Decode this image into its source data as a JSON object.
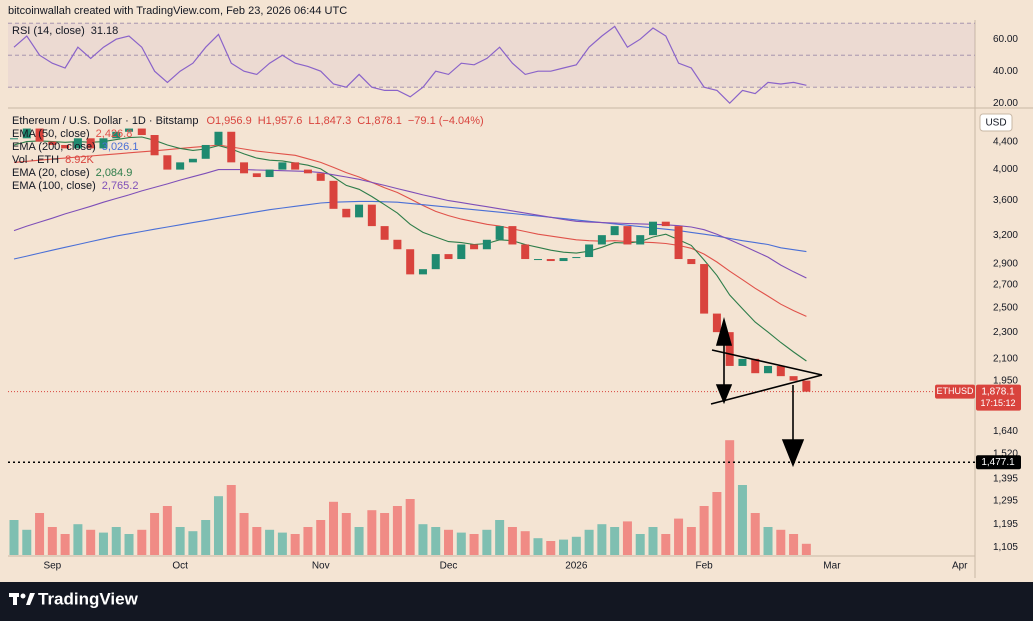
{
  "header": {
    "text": "bitcoinwallah created with TradingView.com, Feb 23, 2026 06:44 UTC"
  },
  "footer": {
    "brand": "TradingView"
  },
  "chart_data": [
    {
      "type": "line",
      "title": "RSI (14, close)",
      "color": "#8a63c9",
      "ylim": [
        17,
        72
      ],
      "yticks": [
        {
          "value": 20,
          "label": "20.00"
        },
        {
          "value": 40,
          "label": "40.00"
        },
        {
          "value": 60,
          "label": "60.00"
        }
      ],
      "bands": [
        30,
        50,
        70
      ],
      "values": [
        55,
        62,
        50,
        45,
        42,
        55,
        48,
        55,
        60,
        62,
        55,
        40,
        33,
        40,
        45,
        55,
        63,
        45,
        40,
        38,
        45,
        50,
        45,
        43,
        40,
        32,
        30,
        38,
        30,
        28,
        28,
        24,
        30,
        40,
        38,
        45,
        44,
        48,
        55,
        45,
        38,
        40,
        40,
        42,
        44,
        55,
        62,
        68,
        55,
        60,
        67,
        62,
        45,
        42,
        30,
        28,
        20,
        28,
        26,
        33,
        32,
        33,
        31.18,
        null,
        null,
        null,
        null,
        null,
        null,
        null,
        null,
        null,
        null,
        null,
        null,
        null,
        null,
        null
      ]
    },
    {
      "type": "candlestick",
      "title": "Ethereum / U.S. Dollar · 1D · Bitstamp",
      "ohlc_labels": [
        "O1,956.9",
        "H1,957.6",
        "L1,847.3",
        "C1,878.1",
        "−79.1 (−4.04%)"
      ],
      "log": true,
      "ylim": [
        1077,
        4900
      ],
      "yticks": [
        {
          "value": 4400,
          "label": "4,400"
        },
        {
          "value": 4000,
          "label": "4,000"
        },
        {
          "value": 3600,
          "label": "3,600"
        },
        {
          "value": 3200,
          "label": "3,200"
        },
        {
          "value": 2900,
          "label": "2,900"
        },
        {
          "value": 2700,
          "label": "2,700"
        },
        {
          "value": 2500,
          "label": "2,500"
        },
        {
          "value": 2300,
          "label": "2,300"
        },
        {
          "value": 2100,
          "label": "2,100"
        },
        {
          "value": 1950,
          "label": "1,950"
        },
        {
          "value": 1640,
          "label": "1,640"
        },
        {
          "value": 1520,
          "label": "1,520"
        },
        {
          "value": 1395,
          "label": "1,395"
        },
        {
          "value": 1295,
          "label": "1,295"
        },
        {
          "value": 1195,
          "label": "1,195"
        },
        {
          "value": 1105,
          "label": "1,105"
        }
      ],
      "currency": "USD",
      "up_color": "#1f8a70",
      "down_color": "#d9433d",
      "volume_up_color": "#7fbfb1",
      "volume_down_color": "#f08b85",
      "categories": [
        null,
        null,
        null,
        "Sep",
        null,
        null,
        null,
        null,
        null,
        null,
        null,
        null,
        null,
        "Oct",
        null,
        null,
        null,
        null,
        null,
        null,
        null,
        null,
        null,
        null,
        "Nov",
        null,
        null,
        null,
        null,
        null,
        null,
        null,
        null,
        null,
        "Dec",
        null,
        null,
        null,
        null,
        null,
        null,
        null,
        null,
        null,
        "2026",
        null,
        null,
        null,
        null,
        null,
        null,
        null,
        null,
        null,
        "Feb",
        null,
        null,
        null,
        null,
        null,
        null,
        null,
        null,
        null,
        "Mar",
        null,
        null,
        null,
        null,
        null,
        null,
        null,
        null,
        null,
        "Apr",
        null,
        null,
        null
      ],
      "close": [
        4450,
        4600,
        4400,
        4350,
        4300,
        4450,
        4300,
        4450,
        4550,
        4600,
        4500,
        4200,
        4000,
        4100,
        4150,
        4350,
        4550,
        4100,
        3950,
        3900,
        4000,
        4100,
        4000,
        3950,
        3850,
        3500,
        3400,
        3550,
        3300,
        3150,
        3050,
        2800,
        2850,
        3000,
        2950,
        3100,
        3050,
        3150,
        3300,
        3100,
        2950,
        2950,
        2930,
        2960,
        2970,
        3100,
        3200,
        3300,
        3100,
        3200,
        3350,
        3300,
        2950,
        2900,
        2450,
        2300,
        2050,
        2100,
        2000,
        2050,
        1980,
        1950,
        1878.1,
        null,
        null,
        null,
        null,
        null,
        null,
        null,
        null,
        null,
        null,
        null,
        null,
        null,
        null,
        null
      ],
      "volume_name": "Vol · ETH",
      "volume_label": "8.92K",
      "volume": [
        250,
        180,
        300,
        200,
        150,
        220,
        180,
        160,
        200,
        150,
        180,
        300,
        350,
        200,
        170,
        250,
        420,
        500,
        300,
        200,
        180,
        160,
        150,
        200,
        250,
        380,
        300,
        200,
        320,
        300,
        350,
        400,
        220,
        200,
        180,
        160,
        150,
        180,
        250,
        200,
        170,
        120,
        100,
        110,
        130,
        180,
        220,
        200,
        240,
        150,
        200,
        150,
        260,
        200,
        350,
        450,
        820,
        500,
        300,
        200,
        180,
        150,
        80,
        null,
        null,
        null,
        null,
        null,
        null,
        null,
        null,
        null,
        null,
        null,
        null,
        null,
        null,
        null
      ],
      "series": [
        {
          "name": "EMA (50, close)",
          "color": "#e0524a",
          "legend_value": "2,426.8",
          "values": [
            4100,
            4115,
            4130,
            4145,
            4160,
            4175,
            4190,
            4205,
            4220,
            4235,
            4250,
            4265,
            4280,
            4300,
            4315,
            4330,
            4350,
            4320,
            4290,
            4260,
            4240,
            4220,
            4200,
            4150,
            4100,
            4030,
            3960,
            3900,
            3830,
            3760,
            3700,
            3620,
            3540,
            3470,
            3420,
            3380,
            3350,
            3320,
            3300,
            3270,
            3240,
            3210,
            3190,
            3170,
            3150,
            3140,
            3135,
            3140,
            3130,
            3125,
            3120,
            3110,
            3090,
            3060,
            3000,
            2920,
            2830,
            2750,
            2670,
            2600,
            2530,
            2475,
            2426.8,
            null,
            null,
            null,
            null,
            null,
            null,
            null,
            null,
            null,
            null,
            null,
            null,
            null,
            null,
            null
          ]
        },
        {
          "name": "EMA (200, close)",
          "color": "#4a6fd6",
          "legend_value": "3,026.1",
          "values": [
            2950,
            2980,
            3010,
            3040,
            3070,
            3100,
            3130,
            3160,
            3190,
            3215,
            3240,
            3265,
            3290,
            3315,
            3340,
            3365,
            3390,
            3415,
            3440,
            3465,
            3490,
            3510,
            3530,
            3550,
            3570,
            3580,
            3585,
            3590,
            3590,
            3585,
            3580,
            3565,
            3550,
            3535,
            3520,
            3505,
            3490,
            3475,
            3460,
            3445,
            3430,
            3415,
            3400,
            3385,
            3370,
            3355,
            3340,
            3325,
            3310,
            3295,
            3280,
            3265,
            3250,
            3230,
            3210,
            3190,
            3165,
            3140,
            3120,
            3100,
            3065,
            3045,
            3026.1,
            null,
            null,
            null,
            null,
            null,
            null,
            null,
            null,
            null,
            null,
            null,
            null,
            null,
            null,
            null
          ]
        },
        {
          "name": "EMA (20, close)",
          "color": "#2e7d4a",
          "legend_value": "2,084.9",
          "values": [
            4350,
            4400,
            4410,
            4400,
            4390,
            4400,
            4390,
            4400,
            4430,
            4460,
            4470,
            4420,
            4350,
            4300,
            4270,
            4290,
            4340,
            4290,
            4220,
            4160,
            4130,
            4120,
            4090,
            4060,
            4010,
            3900,
            3790,
            3740,
            3650,
            3550,
            3450,
            3320,
            3230,
            3180,
            3130,
            3120,
            3100,
            3110,
            3150,
            3140,
            3100,
            3070,
            3040,
            3020,
            3010,
            3030,
            3070,
            3120,
            3115,
            3130,
            3180,
            3210,
            3150,
            3090,
            2940,
            2790,
            2610,
            2490,
            2380,
            2300,
            2220,
            2150,
            2084.9,
            null,
            null,
            null,
            null,
            null,
            null,
            null,
            null,
            null,
            null,
            null,
            null,
            null,
            null,
            null
          ]
        },
        {
          "name": "EMA (100, close)",
          "color": "#7e4fb8",
          "legend_value": "2,765.2",
          "values": [
            3250,
            3300,
            3345,
            3390,
            3440,
            3485,
            3530,
            3580,
            3625,
            3670,
            3720,
            3765,
            3810,
            3860,
            3905,
            3950,
            4000,
            4000,
            4000,
            3995,
            3990,
            3985,
            3980,
            3975,
            3960,
            3930,
            3900,
            3870,
            3830,
            3790,
            3750,
            3710,
            3670,
            3635,
            3600,
            3575,
            3550,
            3525,
            3500,
            3475,
            3450,
            3425,
            3400,
            3375,
            3355,
            3345,
            3340,
            3335,
            3330,
            3325,
            3320,
            3315,
            3305,
            3290,
            3260,
            3210,
            3150,
            3090,
            3030,
            2970,
            2890,
            2825,
            2765.2,
            null,
            null,
            null,
            null,
            null,
            null,
            null,
            null,
            null,
            null,
            null,
            null,
            null,
            null,
            null
          ]
        }
      ],
      "price_tag": {
        "symbol": "ETHUSD",
        "value": 1878.1,
        "label": "1,878.1",
        "countdown": "17:15:12"
      },
      "level": {
        "value": 1477.1,
        "label": "1,477.1"
      }
    }
  ]
}
